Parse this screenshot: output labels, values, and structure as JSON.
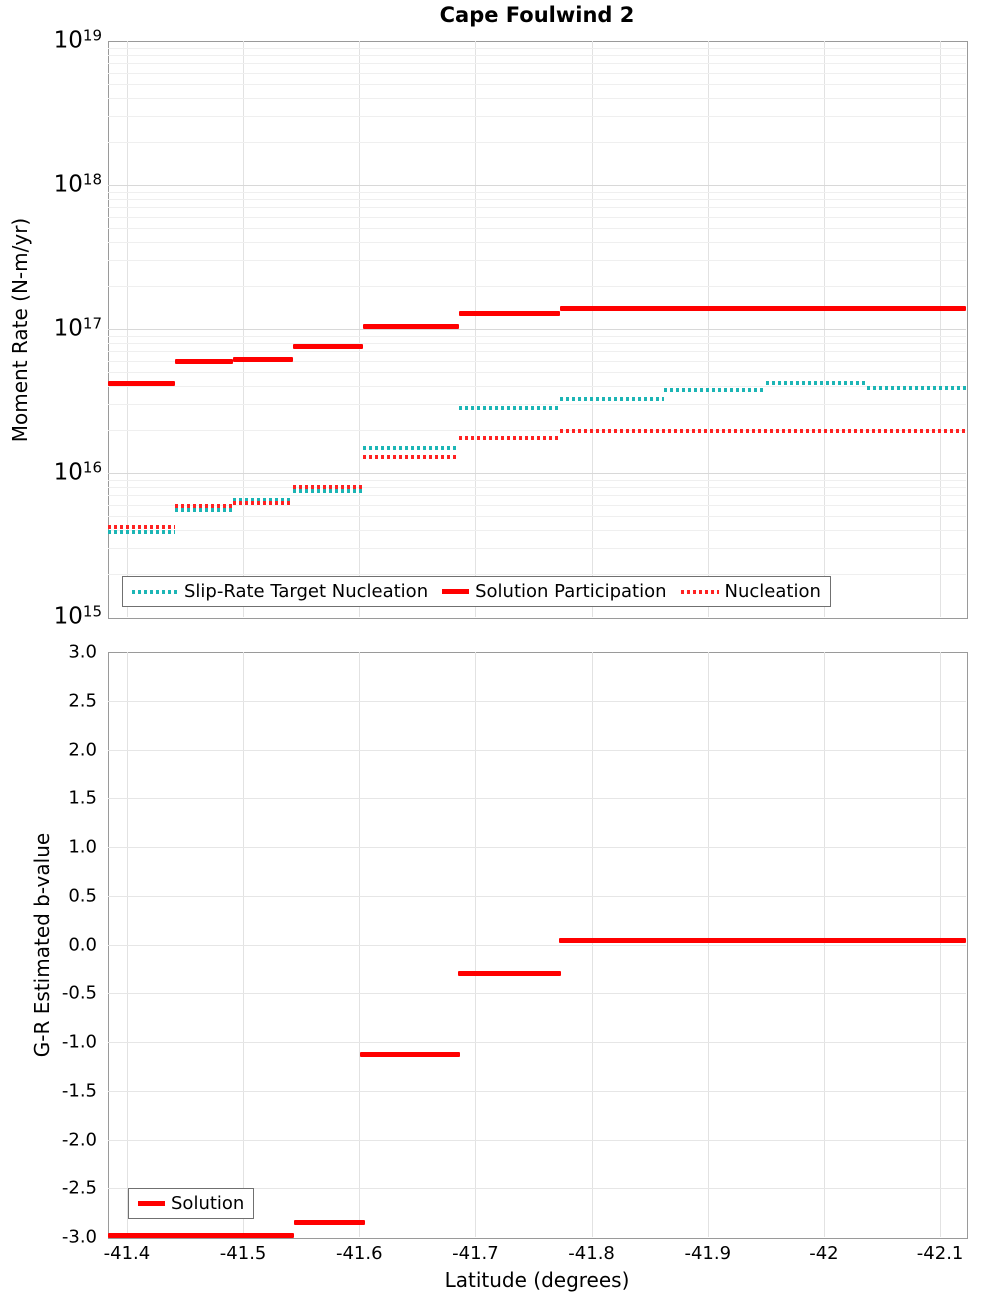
{
  "figure": {
    "title": "Cape Foulwind 2",
    "xlabel": "Latitude (degrees)"
  },
  "colors": {
    "solution_red": "#ff0000",
    "nucleation_red_dotted": "#ff2222",
    "target_teal_dotted": "#1cb5b5",
    "grid_major": "#d8d8d8",
    "grid_minor": "#efefef",
    "plot_border": "#9a9a9a"
  },
  "chart_data": [
    {
      "type": "line",
      "subtype": "step-segments",
      "title": "Cape Foulwind 2",
      "ylabel": "Moment Rate (N-m/yr)",
      "y_scale": "log",
      "ylim": [
        1000000000000000.0,
        1e+19
      ],
      "y_tick_exponents": [
        19,
        18,
        17,
        16,
        15
      ],
      "xlim": [
        -41.3837,
        -42.1223
      ],
      "x_axis_reversed": true,
      "x_tick_values": [
        -41.4,
        -41.5,
        -41.6,
        -41.7,
        -41.8,
        -41.9,
        -42.0,
        -42.1
      ],
      "x_tick_labels": [
        "-41.4",
        "-41.5",
        "-41.6",
        "-41.7",
        "-41.8",
        "-41.9",
        "-42",
        "-42.1"
      ],
      "grid": true,
      "legend_position": "lower-left",
      "series": [
        {
          "name": "Slip-Rate Target Nucleation",
          "color": "#1cb5b5",
          "style": "dotted",
          "segments": [
            [
              -41.384,
              -41.441,
              3900000000000000.0
            ],
            [
              -41.441,
              -41.491,
              5500000000000000.0
            ],
            [
              -41.491,
              -41.543,
              6500000000000000.0
            ],
            [
              -41.543,
              -41.603,
              7500000000000000.0
            ],
            [
              -41.603,
              -41.686,
              1.5e+16
            ],
            [
              -41.686,
              -41.773,
              2.85e+16
            ],
            [
              -41.773,
              -41.862,
              3.25e+16
            ],
            [
              -41.862,
              -41.95,
              3.8e+16
            ],
            [
              -41.95,
              -42.037,
              4.2e+16
            ],
            [
              -42.037,
              -42.122,
              3.9e+16
            ]
          ]
        },
        {
          "name": "Solution Participation",
          "color": "#ff0000",
          "style": "solid",
          "segments": [
            [
              -41.384,
              -41.441,
              4.2e+16
            ],
            [
              -41.441,
              -41.491,
              5.9e+16
            ],
            [
              -41.491,
              -41.543,
              6.1e+16
            ],
            [
              -41.543,
              -41.603,
              7.5e+16
            ],
            [
              -41.603,
              -41.686,
              1.04e+17
            ],
            [
              -41.686,
              -41.773,
              1.29e+17
            ],
            [
              -41.773,
              -42.122,
              1.38e+17
            ]
          ]
        },
        {
          "name": "Nucleation",
          "color": "#ff2222",
          "style": "dotted",
          "segments": [
            [
              -41.384,
              -41.441,
              4200000000000000.0
            ],
            [
              -41.441,
              -41.491,
              5900000000000000.0
            ],
            [
              -41.491,
              -41.543,
              6200000000000000.0
            ],
            [
              -41.543,
              -41.603,
              8000000000000000.0
            ],
            [
              -41.603,
              -41.686,
              1.3e+16
            ],
            [
              -41.686,
              -41.773,
              1.76e+16
            ],
            [
              -41.773,
              -42.122,
              1.95e+16
            ]
          ]
        }
      ]
    },
    {
      "type": "line",
      "subtype": "step-segments",
      "ylabel": "G-R Estimated b-value",
      "xlabel": "Latitude (degrees)",
      "y_scale": "linear",
      "ylim": [
        -3.0,
        3.0
      ],
      "y_tick_labels": [
        "3.0",
        "2.5",
        "2.0",
        "1.5",
        "1.0",
        "0.5",
        "0.0",
        "-0.5",
        "-1.0",
        "-1.5",
        "-2.0",
        "-2.5",
        "-3.0"
      ],
      "y_tick_values": [
        3.0,
        2.5,
        2.0,
        1.5,
        1.0,
        0.5,
        0.0,
        -0.5,
        -1.0,
        -1.5,
        -2.0,
        -2.5,
        -3.0
      ],
      "xlim": [
        -41.3837,
        -42.1223
      ],
      "x_axis_reversed": true,
      "x_tick_values": [
        -41.4,
        -41.5,
        -41.6,
        -41.7,
        -41.8,
        -41.9,
        -42.0,
        -42.1
      ],
      "x_tick_labels": [
        "-41.4",
        "-41.5",
        "-41.6",
        "-41.7",
        "-41.8",
        "-41.9",
        "-42",
        "-42.1"
      ],
      "grid": true,
      "legend_position": "lower-left",
      "series": [
        {
          "name": "Solution",
          "color": "#ff0000",
          "style": "solid",
          "segments": [
            [
              -41.384,
              -41.544,
              -2.98
            ],
            [
              -41.544,
              -41.605,
              -2.85
            ],
            [
              -41.601,
              -41.687,
              -1.13
            ],
            [
              -41.685,
              -41.774,
              -0.3
            ],
            [
              -41.772,
              -42.122,
              0.04
            ]
          ]
        }
      ]
    }
  ]
}
